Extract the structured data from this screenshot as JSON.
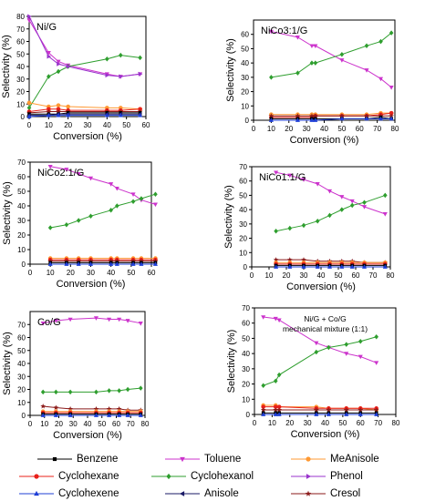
{
  "series_styles": {
    "Benzene": {
      "color": "#000000",
      "marker": "square"
    },
    "Toluene": {
      "color": "#cc33cc",
      "marker": "tri-down"
    },
    "MeAnisole": {
      "color": "#ff9933",
      "marker": "circle"
    },
    "Cyclohexane": {
      "color": "#e8201a",
      "marker": "circle"
    },
    "Cyclohexanol": {
      "color": "#2e9e2e",
      "marker": "diamond"
    },
    "Phenol": {
      "color": "#9933cc",
      "marker": "tri-right"
    },
    "Cyclohexene": {
      "color": "#1f3fd6",
      "marker": "tri-up"
    },
    "Anisole": {
      "color": "#1a1a66",
      "marker": "tri-left"
    },
    "Cresol": {
      "color": "#8b1a1a",
      "marker": "star"
    }
  },
  "legend": {
    "items": [
      "Benzene",
      "Toluene",
      "MeAnisole",
      "Cyclohexane",
      "Cyclohexanol",
      "Phenol",
      "Cyclohexene",
      "Anisole",
      "Cresol"
    ]
  },
  "chart_data": [
    {
      "type": "line",
      "title": "Ni/G",
      "xlabel": "Conversion (%)",
      "ylabel": "Selectivity (%)",
      "xlim": [
        0,
        60
      ],
      "xticks": [
        0,
        10,
        20,
        30,
        40,
        50,
        60
      ],
      "ylim": [
        0,
        80
      ],
      "yticks": [
        0,
        10,
        20,
        30,
        40,
        50,
        60,
        70,
        80
      ],
      "series": [
        {
          "name": "Toluene",
          "x": [
            0,
            10,
            15,
            20,
            40,
            47,
            57
          ],
          "y": [
            77,
            51,
            44,
            41,
            34,
            32,
            34
          ]
        },
        {
          "name": "Cyclohexanol",
          "x": [
            0,
            10,
            15,
            20,
            40,
            47,
            57
          ],
          "y": [
            7,
            32,
            36,
            40,
            46,
            49,
            47
          ]
        },
        {
          "name": "Phenol",
          "x": [
            0,
            10,
            15,
            20,
            40,
            47,
            57
          ],
          "y": [
            80,
            48,
            42,
            40,
            33,
            32,
            34
          ]
        },
        {
          "name": "MeAnisole",
          "x": [
            0,
            10,
            15,
            20,
            40,
            47,
            57
          ],
          "y": [
            11,
            8,
            9,
            8,
            7,
            7,
            6
          ]
        },
        {
          "name": "Cyclohexane",
          "x": [
            0,
            10,
            15,
            20,
            40,
            47,
            57
          ],
          "y": [
            4,
            6,
            6,
            5,
            5,
            5,
            6
          ]
        },
        {
          "name": "Cresol",
          "x": [
            0,
            10,
            15,
            20,
            40,
            47,
            57
          ],
          "y": [
            3,
            4,
            4,
            4,
            4,
            4,
            4
          ]
        },
        {
          "name": "Benzene",
          "x": [
            0,
            10,
            15,
            20,
            40,
            47,
            57
          ],
          "y": [
            2,
            2,
            2,
            3,
            3,
            3,
            3
          ]
        },
        {
          "name": "Anisole",
          "x": [
            0,
            10,
            15,
            20,
            40,
            47,
            57
          ],
          "y": [
            1,
            1,
            2,
            2,
            2,
            2,
            2
          ]
        },
        {
          "name": "Cyclohexene",
          "x": [
            0,
            10,
            15,
            20,
            40,
            47,
            57
          ],
          "y": [
            0,
            1,
            1,
            1,
            1,
            1,
            1
          ]
        }
      ]
    },
    {
      "type": "line",
      "title": "NiCo3:1/G",
      "xlabel": "Conversion (%)",
      "ylabel": "Selectivity (%)",
      "xlim": [
        0,
        80
      ],
      "xticks": [
        0,
        10,
        20,
        30,
        40,
        50,
        60,
        70,
        80
      ],
      "ylim": [
        0,
        70
      ],
      "yticks": [
        0,
        10,
        20,
        30,
        40,
        50,
        60
      ],
      "series": [
        {
          "name": "Toluene",
          "x": [
            10,
            25,
            33,
            35,
            50,
            64,
            72,
            78
          ],
          "y": [
            62,
            58,
            52,
            52,
            42,
            35,
            29,
            23
          ]
        },
        {
          "name": "Cyclohexanol",
          "x": [
            10,
            25,
            33,
            35,
            50,
            64,
            72,
            78
          ],
          "y": [
            30,
            33,
            40,
            40,
            46,
            52,
            55,
            61
          ]
        },
        {
          "name": "MeAnisole",
          "x": [
            10,
            25,
            33,
            35,
            50,
            64,
            72,
            78
          ],
          "y": [
            4,
            4,
            4,
            4,
            4,
            4,
            5,
            5
          ]
        },
        {
          "name": "Cyclohexane",
          "x": [
            10,
            25,
            33,
            35,
            50,
            64,
            72,
            78
          ],
          "y": [
            2,
            2,
            2,
            3,
            3,
            3,
            4,
            5
          ]
        },
        {
          "name": "Cresol",
          "x": [
            10,
            25,
            33,
            35,
            50,
            64,
            72,
            78
          ],
          "y": [
            3,
            3,
            3,
            3,
            3,
            3,
            3,
            3
          ]
        },
        {
          "name": "Benzene",
          "x": [
            10,
            25,
            33,
            35,
            50,
            64,
            72,
            78
          ],
          "y": [
            1,
            1,
            1,
            1,
            1,
            1,
            2,
            1
          ]
        },
        {
          "name": "Cyclohexene",
          "x": [
            10,
            25,
            33,
            35,
            50,
            64,
            72,
            78
          ],
          "y": [
            0,
            0,
            0,
            0,
            1,
            1,
            1,
            1
          ]
        }
      ]
    },
    {
      "type": "line",
      "title": "NiCo2:1/G",
      "xlabel": "Conversion (%)",
      "ylabel": "Selectivity (%)",
      "xlim": [
        0,
        60
      ],
      "xticks": [
        0,
        10,
        20,
        30,
        40,
        50,
        60
      ],
      "ylim": [
        0,
        70
      ],
      "yticks": [
        0,
        10,
        20,
        30,
        40,
        50,
        60,
        70
      ],
      "series": [
        {
          "name": "Toluene",
          "x": [
            10,
            18,
            24,
            30,
            40,
            43,
            51,
            55,
            62
          ],
          "y": [
            67,
            65,
            62,
            59,
            55,
            52,
            48,
            44,
            41
          ]
        },
        {
          "name": "Cyclohexanol",
          "x": [
            10,
            18,
            24,
            30,
            40,
            43,
            51,
            55,
            62
          ],
          "y": [
            25,
            27,
            30,
            33,
            37,
            40,
            43,
            45,
            48
          ]
        },
        {
          "name": "MeAnisole",
          "x": [
            10,
            18,
            24,
            30,
            40,
            43,
            51,
            55,
            62
          ],
          "y": [
            4,
            4,
            4,
            4,
            4,
            4,
            4,
            4,
            4
          ]
        },
        {
          "name": "Cyclohexane",
          "x": [
            10,
            18,
            24,
            30,
            40,
            43,
            51,
            55,
            62
          ],
          "y": [
            3,
            3,
            3,
            3,
            3,
            3,
            3,
            3,
            3
          ]
        },
        {
          "name": "Cresol",
          "x": [
            10,
            18,
            24,
            30,
            40,
            43,
            51,
            55,
            62
          ],
          "y": [
            2,
            2,
            2,
            2,
            2,
            2,
            2,
            2,
            2
          ]
        },
        {
          "name": "Benzene",
          "x": [
            10,
            18,
            24,
            30,
            40,
            43,
            51,
            55,
            62
          ],
          "y": [
            1,
            1,
            1,
            1,
            1,
            1,
            1,
            1,
            1
          ]
        },
        {
          "name": "Cyclohexene",
          "x": [
            10,
            18,
            24,
            30,
            40,
            43,
            51,
            55,
            62
          ],
          "y": [
            0,
            0,
            0,
            0,
            0,
            0,
            0,
            0,
            0
          ]
        }
      ]
    },
    {
      "type": "line",
      "title": "NiCo1:1/G",
      "xlabel": "Conversion (%)",
      "ylabel": "Selectivity (%)",
      "xlim": [
        0,
        80
      ],
      "xticks": [
        0,
        10,
        20,
        30,
        40,
        50,
        60,
        70,
        80
      ],
      "ylim": [
        0,
        70
      ],
      "yticks": [
        0,
        10,
        20,
        30,
        40,
        50,
        60,
        70
      ],
      "series": [
        {
          "name": "Toluene",
          "x": [
            14,
            22,
            30,
            38,
            45,
            52,
            58,
            65,
            77
          ],
          "y": [
            66,
            64,
            61,
            58,
            53,
            49,
            46,
            42,
            37
          ]
        },
        {
          "name": "Cyclohexanol",
          "x": [
            14,
            22,
            30,
            38,
            45,
            52,
            58,
            65,
            77
          ],
          "y": [
            25,
            27,
            29,
            32,
            36,
            40,
            43,
            45,
            50
          ]
        },
        {
          "name": "Cresol",
          "x": [
            14,
            22,
            30,
            38,
            45,
            52,
            58,
            65,
            77
          ],
          "y": [
            5,
            5,
            5,
            4,
            4,
            4,
            4,
            3,
            3
          ]
        },
        {
          "name": "MeAnisole",
          "x": [
            14,
            22,
            30,
            38,
            45,
            52,
            58,
            65,
            77
          ],
          "y": [
            3,
            3,
            3,
            3,
            3,
            3,
            3,
            3,
            3
          ]
        },
        {
          "name": "Cyclohexane",
          "x": [
            14,
            22,
            30,
            38,
            45,
            52,
            58,
            65,
            77
          ],
          "y": [
            2,
            2,
            2,
            2,
            2,
            2,
            2,
            2,
            2
          ]
        },
        {
          "name": "Benzene",
          "x": [
            14,
            22,
            30,
            38,
            45,
            52,
            58,
            65,
            77
          ],
          "y": [
            1,
            1,
            1,
            1,
            1,
            1,
            1,
            1,
            1
          ]
        },
        {
          "name": "Cyclohexene",
          "x": [
            14,
            22,
            30,
            38,
            45,
            52,
            58,
            65,
            77
          ],
          "y": [
            0,
            0,
            0,
            0,
            0,
            0,
            0,
            0,
            0
          ]
        }
      ]
    },
    {
      "type": "line",
      "title": "Co/G",
      "xlabel": "Conversion (%)",
      "ylabel": "Selectivity (%)",
      "xlim": [
        0,
        80
      ],
      "xticks": [
        0,
        10,
        20,
        30,
        40,
        50,
        60,
        70,
        80
      ],
      "ylim": [
        0,
        80
      ],
      "yticks": [
        0,
        10,
        20,
        30,
        40,
        50,
        60,
        70
      ],
      "series": [
        {
          "name": "Toluene",
          "x": [
            9,
            18,
            28,
            46,
            55,
            62,
            68,
            77
          ],
          "y": [
            71,
            73,
            74,
            75,
            74,
            74,
            73,
            71
          ]
        },
        {
          "name": "Cyclohexanol",
          "x": [
            9,
            18,
            28,
            46,
            55,
            62,
            68,
            77
          ],
          "y": [
            18,
            18,
            18,
            18,
            19,
            19,
            20,
            21
          ]
        },
        {
          "name": "Cresol",
          "x": [
            9,
            18,
            28,
            46,
            55,
            62,
            68,
            77
          ],
          "y": [
            7,
            6,
            5,
            5,
            5,
            5,
            4,
            4
          ]
        },
        {
          "name": "MeAnisole",
          "x": [
            9,
            18,
            28,
            46,
            55,
            62,
            68,
            77
          ],
          "y": [
            3,
            3,
            3,
            3,
            3,
            3,
            3,
            3
          ]
        },
        {
          "name": "Cyclohexane",
          "x": [
            9,
            18,
            28,
            46,
            55,
            62,
            68,
            77
          ],
          "y": [
            2,
            2,
            2,
            2,
            2,
            2,
            2,
            2
          ]
        },
        {
          "name": "Benzene",
          "x": [
            9,
            18,
            28,
            46,
            55,
            62,
            68,
            77
          ],
          "y": [
            1,
            1,
            1,
            1,
            1,
            1,
            1,
            1
          ]
        },
        {
          "name": "Cyclohexene",
          "x": [
            9,
            18,
            28,
            46,
            55,
            62,
            68,
            77
          ],
          "y": [
            0,
            0,
            0,
            0,
            0,
            0,
            0,
            0
          ]
        }
      ]
    },
    {
      "type": "line",
      "title": "Ni/G + Co/G",
      "subtitle": "mechanical mixture (1:1)",
      "xlabel": "Conversion (%)",
      "ylabel": "Selectivity (%)",
      "xlim": [
        0,
        80
      ],
      "xticks": [
        0,
        10,
        20,
        30,
        40,
        50,
        60,
        70,
        80
      ],
      "ylim": [
        0,
        70
      ],
      "yticks": [
        0,
        10,
        20,
        30,
        40,
        50,
        60,
        70
      ],
      "series": [
        {
          "name": "Toluene",
          "x": [
            5,
            12,
            14,
            35,
            42,
            52,
            60,
            69
          ],
          "y": [
            64,
            63,
            62,
            47,
            44,
            40,
            38,
            34
          ]
        },
        {
          "name": "Cyclohexanol",
          "x": [
            5,
            12,
            14,
            35,
            42,
            52,
            60,
            69
          ],
          "y": [
            19,
            22,
            26,
            41,
            44,
            46,
            48,
            51
          ]
        },
        {
          "name": "MeAnisole",
          "x": [
            5,
            12,
            14,
            35,
            42,
            52,
            60,
            69
          ],
          "y": [
            6,
            6,
            5,
            5,
            4,
            4,
            4,
            3
          ]
        },
        {
          "name": "Cyclohexane",
          "x": [
            5,
            12,
            14,
            35,
            42,
            52,
            60,
            69
          ],
          "y": [
            5,
            5,
            5,
            4,
            4,
            4,
            4,
            4
          ]
        },
        {
          "name": "Cresol",
          "x": [
            5,
            12,
            14,
            35,
            42,
            52,
            60,
            69
          ],
          "y": [
            3,
            3,
            3,
            3,
            3,
            3,
            3,
            3
          ]
        },
        {
          "name": "Benzene",
          "x": [
            5,
            12,
            14,
            35,
            42,
            52,
            60,
            69
          ],
          "y": [
            1,
            1,
            1,
            1,
            1,
            1,
            1,
            1
          ]
        },
        {
          "name": "Cyclohexene",
          "x": [
            5,
            12,
            14,
            35,
            42,
            52,
            60,
            69
          ],
          "y": [
            0,
            0,
            0,
            0,
            0,
            0,
            0,
            0
          ]
        }
      ]
    }
  ]
}
